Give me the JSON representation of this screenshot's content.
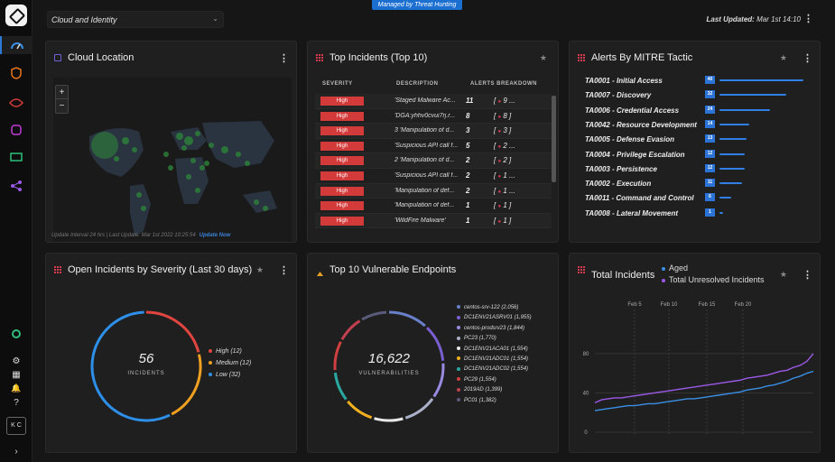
{
  "header": {
    "filter_value": "Cloud and Identity",
    "banner": "Managed by Threat Hunting",
    "updated_label": "Last Updated:",
    "updated_value": "Mar 1st 14:10"
  },
  "sidebar": {
    "avatar": "K C"
  },
  "cloud": {
    "title": "Cloud Location",
    "footer": "Update Interval 24 hrs | Last Update: Mar 1st 2022 10:25:54",
    "update_link": "Update Now",
    "zoom_in": "+",
    "zoom_out": "−"
  },
  "incidents": {
    "title": "Top Incidents (Top 10)",
    "col_sev": "SEVERITY",
    "col_desc": "DESCRIPTION",
    "col_alerts": "ALERTS BREAKDOWN",
    "rows": [
      {
        "sev": "High",
        "desc": "'Staged Malware Ac...",
        "count": "11",
        "brk": "9",
        "tail": "..."
      },
      {
        "sev": "High",
        "desc": "'DGA:yhhv0cvui7rj.r...",
        "count": "8",
        "brk": "8",
        "tail": "]"
      },
      {
        "sev": "High",
        "desc": "3 'Manipulation of d...",
        "count": "3",
        "brk": "3",
        "tail": "]"
      },
      {
        "sev": "High",
        "desc": "'Suspicious API call f...",
        "count": "5",
        "brk": "2",
        "tail": "..."
      },
      {
        "sev": "High",
        "desc": "2 'Manipulation of d...",
        "count": "2",
        "brk": "2",
        "tail": "]"
      },
      {
        "sev": "High",
        "desc": "'Suspicious API call f...",
        "count": "2",
        "brk": "1",
        "tail": "..."
      },
      {
        "sev": "High",
        "desc": "'Manipulation of def...",
        "count": "2",
        "brk": "1",
        "tail": "..."
      },
      {
        "sev": "High",
        "desc": "'Manipulation of def...",
        "count": "1",
        "brk": "1",
        "tail": "]"
      },
      {
        "sev": "High",
        "desc": "'WildFire Malware'",
        "count": "1",
        "brk": "1",
        "tail": "]"
      }
    ]
  },
  "mitre": {
    "title": "Alerts By MITRE Tactic",
    "rows": [
      {
        "label": "TA0001 - Initial Access",
        "value": "40",
        "pct": 1.0
      },
      {
        "label": "TA0007 - Discovery",
        "value": "32",
        "pct": 0.8
      },
      {
        "label": "TA0006 - Credential Access",
        "value": "24",
        "pct": 0.6
      },
      {
        "label": "TA0042 - Resource Development",
        "value": "14",
        "pct": 0.35
      },
      {
        "label": "TA0005 - Defense Evasion",
        "value": "13",
        "pct": 0.32
      },
      {
        "label": "TA0004 - Privilege Escalation",
        "value": "12",
        "pct": 0.3
      },
      {
        "label": "TA0003 - Persistence",
        "value": "12",
        "pct": 0.3
      },
      {
        "label": "TA0002 - Execution",
        "value": "11",
        "pct": 0.27
      },
      {
        "label": "TA0011 - Command and Control",
        "value": "6",
        "pct": 0.14
      },
      {
        "label": "TA0008 - Lateral Movement",
        "value": "1",
        "pct": 0.04
      }
    ]
  },
  "severity": {
    "title": "Open Incidents by Severity (Last 30 days)",
    "total": "56",
    "total_label": "INCIDENTS",
    "items": [
      {
        "label": "High (12)",
        "color": "#e0463f",
        "value": 12
      },
      {
        "label": "Medium (12)",
        "color": "#f0a020",
        "value": 12
      },
      {
        "label": "Low (32)",
        "color": "#2d8fe8",
        "value": 32
      }
    ]
  },
  "endpoints": {
    "title": "Top 10 Vulnerable Endpoints",
    "total": "16,622",
    "total_label": "VULNERABILITIES",
    "items": [
      {
        "label": "centos-srv-122 (2,056)",
        "color": "#6a7fc9",
        "value": 2056
      },
      {
        "label": "DC1ENV21ASRV01 (1,955)",
        "color": "#7a5fd0",
        "value": 1955
      },
      {
        "label": "centos-prodsrv23 (1,844)",
        "color": "#9a8ae0",
        "value": 1844
      },
      {
        "label": "PC23 (1,770)",
        "color": "#aab0c8",
        "value": 1770
      },
      {
        "label": "DC1ENV21ACA01 (1,554)",
        "color": "#e8e8e8",
        "value": 1554
      },
      {
        "label": "DC1ENV21ADC01 (1,554)",
        "color": "#f0b020",
        "value": 1554
      },
      {
        "label": "DC1ENV21ADC02 (1,554)",
        "color": "#2aa8a0",
        "value": 1554
      },
      {
        "label": "PC29 (1,554)",
        "color": "#d04040",
        "value": 1554
      },
      {
        "label": "2019AD (1,399)",
        "color": "#c04050",
        "value": 1399
      },
      {
        "label": "PC01 (1,382)",
        "color": "#5a5a7a",
        "value": 1382
      }
    ]
  },
  "total_incidents": {
    "title": "Total Incidents",
    "legend_aged": "Aged",
    "legend_unresolved": "Total Unresolved Incidents",
    "aged_color": "#3a8fe6",
    "unres_color": "#9b59e8"
  },
  "chart_data": {
    "type": "line",
    "x_ticks": [
      "Feb 5",
      "Feb 10",
      "Feb 15",
      "Feb 20"
    ],
    "y_ticks": [
      "80",
      "40",
      "0"
    ],
    "ylim": [
      0,
      90
    ],
    "series": [
      {
        "name": "Aged",
        "values": [
          22,
          23,
          24,
          25,
          26,
          27,
          27,
          28,
          29,
          29,
          30,
          31,
          32,
          33,
          34,
          34,
          35,
          36,
          37,
          38,
          39,
          40,
          41,
          43,
          44,
          45,
          47,
          48,
          50,
          52,
          55,
          57,
          60,
          62
        ]
      },
      {
        "name": "Total Unresolved Incidents",
        "values": [
          30,
          33,
          34,
          35,
          35,
          36,
          37,
          38,
          39,
          40,
          41,
          42,
          43,
          44,
          45,
          46,
          47,
          48,
          49,
          50,
          51,
          52,
          53,
          55,
          56,
          57,
          58,
          60,
          62,
          63,
          66,
          68,
          72,
          80
        ]
      }
    ]
  }
}
